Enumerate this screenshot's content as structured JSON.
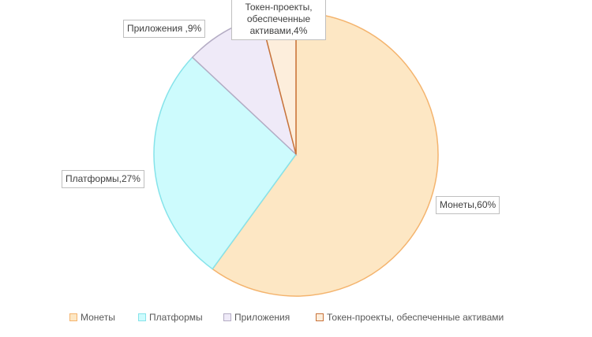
{
  "chart_data": {
    "type": "pie",
    "categories": [
      "Монеты",
      "Платформы",
      "Приложения",
      "Токен-проекты, обеспеченные активами"
    ],
    "values": [
      60,
      27,
      9,
      4
    ],
    "value_labels": [
      "Монеты,60%",
      "Платформы,27%",
      "Приложения ,9%",
      "Токен-проекты, обеспеченные активами,4%"
    ],
    "colors": [
      "#fde7c4",
      "#cdfbfd",
      "#efeaf8",
      "#fdeedc"
    ],
    "border_colors": [
      "#f4b46e",
      "#86e3ea",
      "#b4acc4",
      "#c8733a"
    ],
    "legend": "bottom"
  }
}
